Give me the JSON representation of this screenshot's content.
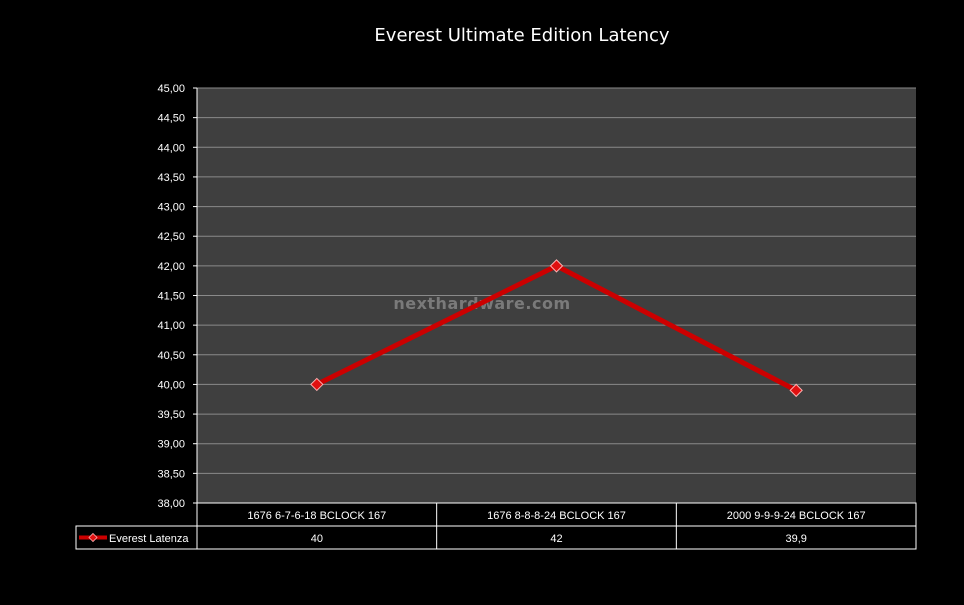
{
  "chart_data": {
    "type": "line",
    "title": "Everest Ultimate Edition Latency",
    "categories": [
      "1676 6-7-6-18 BCLOCK 167",
      "1676 8-8-8-24 BCLOCK 167",
      "2000 9-9-9-24 BCLOCK 167"
    ],
    "series": [
      {
        "name": "Everest Latenza",
        "values": [
          40,
          42,
          39.9
        ],
        "value_labels": [
          "40",
          "42",
          "39,9"
        ],
        "color": "#cc0000"
      }
    ],
    "ylim": [
      38,
      45
    ],
    "ytick_labels": [
      "38,00",
      "38,50",
      "39,00",
      "39,50",
      "40,00",
      "40,50",
      "41,00",
      "41,50",
      "42,00",
      "42,50",
      "43,00",
      "43,50",
      "44,00",
      "44,50",
      "45,00"
    ],
    "xlabel": "",
    "ylabel": "",
    "grid": true,
    "legend_placement": "data-table",
    "plot_background": "#3f3f3f",
    "page_background": "#000000"
  },
  "watermark": "nexthardware.com"
}
